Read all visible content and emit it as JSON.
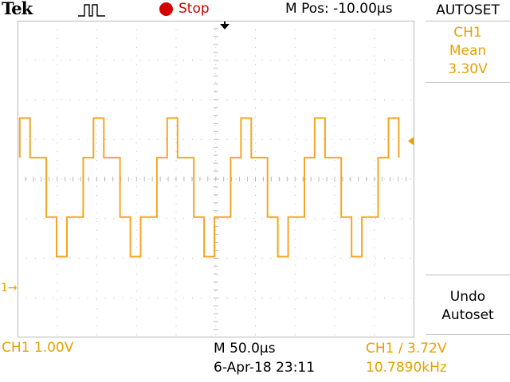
{
  "header": {
    "brand": "Tek",
    "acquisition_icon": "single-pulse-icon",
    "run_status": "Stop",
    "run_status_color": "#d40000",
    "horizontal_position": "M Pos: -10.00µs"
  },
  "side_menu": {
    "title": "AUTOSET",
    "measurement": {
      "source": "CH1",
      "type": "Mean",
      "value": "3.30V"
    },
    "undo_button": {
      "line1": "Undo",
      "line2": "Autoset"
    }
  },
  "waveform": {
    "channel": "CH1",
    "color": "#f5a623",
    "vertical_scale_v_per_div": 1.0,
    "offset_divisions_from_center": -1.3,
    "period_divisions": 1.86,
    "levels_v": [
      4.3,
      3.3,
      1.8,
      0.8
    ],
    "ground_marker": "1→"
  },
  "footer": {
    "ch1_scale": "CH1  1.00V",
    "timebase": "M 50.0µs",
    "datetime": "6-Apr-18 23:11",
    "trigger": "CH1 ∕ 3.72V",
    "frequency": "10.7890kHz"
  },
  "colors": {
    "trace": "#f5a623",
    "label_orange": "#e8a000",
    "grid": "#b8b8b8",
    "stop_red": "#d40000"
  }
}
